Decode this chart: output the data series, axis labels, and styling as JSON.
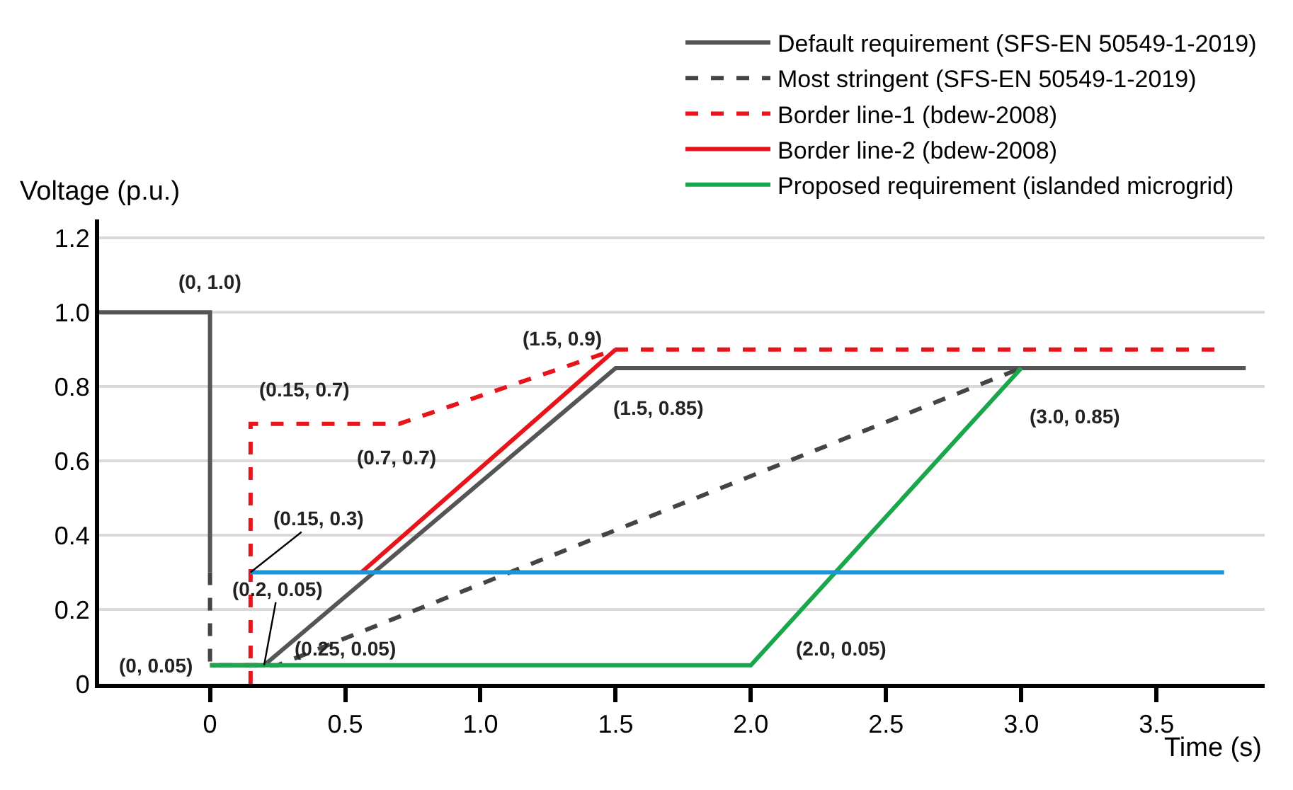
{
  "chart_data": {
    "type": "line",
    "xlabel": "Time (s)",
    "ylabel": "Voltage (p.u.)",
    "xlim": [
      -0.41,
      3.9
    ],
    "ylim": [
      0,
      1.25
    ],
    "xticks": [
      0,
      {
        "value": 0.5,
        "label": "0.5"
      },
      {
        "value": 1,
        "label": "1.0"
      },
      {
        "value": 1.5,
        "label": "1.5"
      },
      {
        "value": 2,
        "label": "2.0"
      },
      {
        "value": 2.5,
        "label": "2.5"
      },
      {
        "value": 3,
        "label": "3.0"
      },
      {
        "value": 3.5,
        "label": "3.5"
      }
    ],
    "yticks": [
      0,
      0.2,
      0.4,
      0.6,
      0.8,
      {
        "value": 1,
        "label": "1.0"
      },
      1.2
    ],
    "grid": "y",
    "legend": "top right",
    "marker": "none",
    "series": [
      {
        "name": "Default requirement (SFS-EN 50549-1-2019)",
        "color": "#555555",
        "line_style": "solid",
        "x": [
          -0.41,
          0,
          0,
          null,
          0,
          0.2,
          1.5,
          3.83
        ],
        "values": [
          1.0,
          1.0,
          0.3,
          null,
          0.05,
          0.05,
          0.85,
          0.85
        ]
      },
      {
        "name": "Most stringent (SFS-EN 50549-1-2019)",
        "color": "#444444",
        "line_style": "dashed",
        "x": [
          0,
          0,
          0.25,
          3.0
        ],
        "values": [
          0.3,
          0.05,
          0.05,
          0.85
        ]
      },
      {
        "name": "Border line-1 (bdew-2008)",
        "color": "#e8141b",
        "line_style": "dashed",
        "x": [
          0.15,
          0.15,
          0.7,
          1.5,
          3.73
        ],
        "values": [
          0,
          0.7,
          0.7,
          0.9,
          0.9
        ]
      },
      {
        "name": "Border line-2 (bdew-2008)",
        "color": "#e8141b",
        "line_style": "solid",
        "x": [
          0.56,
          1.5
        ],
        "values": [
          0.3,
          0.9
        ]
      },
      {
        "name": "Proposed requirement (islanded microgrid)",
        "color": "#1aa64a",
        "line_style": "solid",
        "x": [
          0,
          2.0,
          3.0
        ],
        "values": [
          0.05,
          0.05,
          0.85
        ]
      },
      {
        "color": "#1f96d3",
        "line_style": "solid",
        "x": [
          0.15,
          3.75
        ],
        "values": [
          0.3,
          0.3
        ]
      }
    ],
    "annotations": [
      {
        "text": "(0, 1.0)",
        "x": 0,
        "y": 1.0
      },
      {
        "text": "(0.15, 0.7)",
        "x": 0.15,
        "y": 0.7
      },
      {
        "text": "(0.7, 0.7)",
        "x": 0.7,
        "y": 0.7
      },
      {
        "text": "(0.15, 0.3)",
        "x": 0.15,
        "y": 0.3
      },
      {
        "text": "(0.2, 0.05)",
        "x": 0.2,
        "y": 0.05
      },
      {
        "text": "(0, 0.05)",
        "x": 0,
        "y": 0.05
      },
      {
        "text": "(0.25, 0.05)",
        "x": 0.25,
        "y": 0.05
      },
      {
        "text": "(1.5, 0.9)",
        "x": 1.5,
        "y": 0.9
      },
      {
        "text": "(1.5, 0.85)",
        "x": 1.5,
        "y": 0.85
      },
      {
        "text": "(3.0, 0.85)",
        "x": 3.0,
        "y": 0.85
      },
      {
        "text": "(2.0, 0.05)",
        "x": 2.0,
        "y": 0.05
      }
    ]
  }
}
